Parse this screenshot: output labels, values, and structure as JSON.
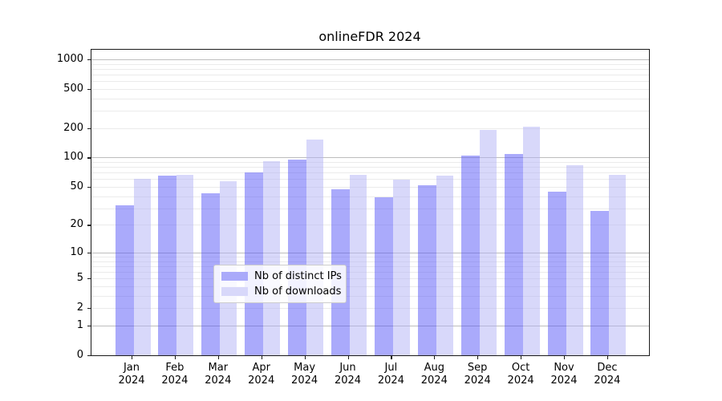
{
  "title": "onlineFDR 2024",
  "chart_data": {
    "type": "bar",
    "title": "onlineFDR 2024",
    "categories": [
      "Jan 2024",
      "Feb 2024",
      "Mar 2024",
      "Apr 2024",
      "May 2024",
      "Jun 2024",
      "Jul 2024",
      "Aug 2024",
      "Sep 2024",
      "Oct 2024",
      "Nov 2024",
      "Dec 2024"
    ],
    "series": [
      {
        "name": "Nb of distinct IPs",
        "color": "#aaaafa",
        "bar_fill": "rgba(85,85,248,0.5)",
        "values": [
          32,
          65,
          43,
          71,
          95,
          47,
          39,
          52,
          105,
          108,
          45,
          28
        ]
      },
      {
        "name": "Nb of downloads",
        "color": "#d8d8fa",
        "bar_fill": "rgba(177,177,245,0.5)",
        "values": [
          60,
          67,
          57,
          91,
          153,
          67,
          59,
          65,
          190,
          205,
          84,
          66
        ]
      }
    ],
    "xlabel": "",
    "ylabel": "",
    "yscale": "log1p",
    "yticks": [
      0,
      1,
      2,
      5,
      10,
      20,
      50,
      100,
      200,
      500,
      1000
    ],
    "ylim": [
      0,
      1250
    ],
    "grid": "major+minor",
    "major_gridlines": [
      1,
      10,
      100,
      1000
    ],
    "legend_position": "lower center"
  },
  "colors": {
    "major_grid": "#bdbdbd",
    "minor_grid": "#ebebeb",
    "spine": "#1a1a1a"
  }
}
